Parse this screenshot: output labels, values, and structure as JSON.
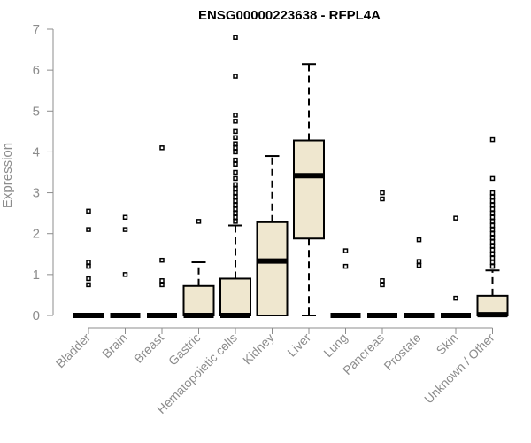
{
  "chart_data": {
    "type": "box",
    "title": "ENSG00000223638 - RFPL4A",
    "ylabel": "Expression",
    "xlabel": "",
    "ylim": [
      0,
      7
    ],
    "yticks": [
      0,
      1,
      2,
      3,
      4,
      5,
      6,
      7
    ],
    "grid": false,
    "box_fill": "#efe7cf",
    "categories": [
      "Bladder",
      "Brain",
      "Breast",
      "Gastric",
      "Hematopoietic cells",
      "Kidney",
      "Liver",
      "Lung",
      "Pancreas",
      "Prostate",
      "Skin",
      "Unknown / Other"
    ],
    "boxes": [
      {
        "q1": 0,
        "median": 0,
        "q3": 0,
        "whisker_low": 0,
        "whisker_high": 0,
        "outliers": [
          0.75,
          0.9,
          1.2,
          1.3,
          2.1,
          2.55
        ]
      },
      {
        "q1": 0,
        "median": 0,
        "q3": 0,
        "whisker_low": 0,
        "whisker_high": 0,
        "outliers": [
          1.0,
          2.1,
          2.4
        ]
      },
      {
        "q1": 0,
        "median": 0,
        "q3": 0,
        "whisker_low": 0,
        "whisker_high": 0,
        "outliers": [
          0.75,
          0.85,
          1.35,
          4.1
        ]
      },
      {
        "q1": 0,
        "median": 0,
        "q3": 0.72,
        "whisker_low": 0,
        "whisker_high": 1.3,
        "outliers": [
          2.3
        ]
      },
      {
        "q1": 0,
        "median": 0,
        "q3": 0.9,
        "whisker_low": 0,
        "whisker_high": 2.2,
        "outliers": [
          2.3,
          2.4,
          2.5,
          2.6,
          2.7,
          2.8,
          2.9,
          3.0,
          3.1,
          3.2,
          3.35,
          3.5,
          3.7,
          3.8,
          4.0,
          4.1,
          4.2,
          4.35,
          4.5,
          4.75,
          4.9,
          5.85,
          6.8
        ]
      },
      {
        "q1": 0,
        "median": 1.33,
        "q3": 2.28,
        "whisker_low": 0,
        "whisker_high": 3.9,
        "outliers": []
      },
      {
        "q1": 1.88,
        "median": 3.42,
        "q3": 4.28,
        "whisker_low": 0,
        "whisker_high": 6.15,
        "outliers": []
      },
      {
        "q1": 0,
        "median": 0,
        "q3": 0,
        "whisker_low": 0,
        "whisker_high": 0,
        "outliers": [
          1.2,
          1.58
        ]
      },
      {
        "q1": 0,
        "median": 0,
        "q3": 0,
        "whisker_low": 0,
        "whisker_high": 0,
        "outliers": [
          0.75,
          0.85,
          2.85,
          3.0
        ]
      },
      {
        "q1": 0,
        "median": 0,
        "q3": 0,
        "whisker_low": 0,
        "whisker_high": 0,
        "outliers": [
          1.22,
          1.32,
          1.85
        ]
      },
      {
        "q1": 0,
        "median": 0,
        "q3": 0,
        "whisker_low": 0,
        "whisker_high": 0,
        "outliers": [
          0.42,
          2.38
        ]
      },
      {
        "q1": 0,
        "median": 0.02,
        "q3": 0.48,
        "whisker_low": 0,
        "whisker_high": 1.1,
        "outliers": [
          1.2,
          1.3,
          1.4,
          1.5,
          1.6,
          1.7,
          1.8,
          1.9,
          2.0,
          2.1,
          2.2,
          2.3,
          2.4,
          2.5,
          2.6,
          2.7,
          2.8,
          2.9,
          3.0,
          3.35,
          4.3
        ]
      }
    ]
  }
}
